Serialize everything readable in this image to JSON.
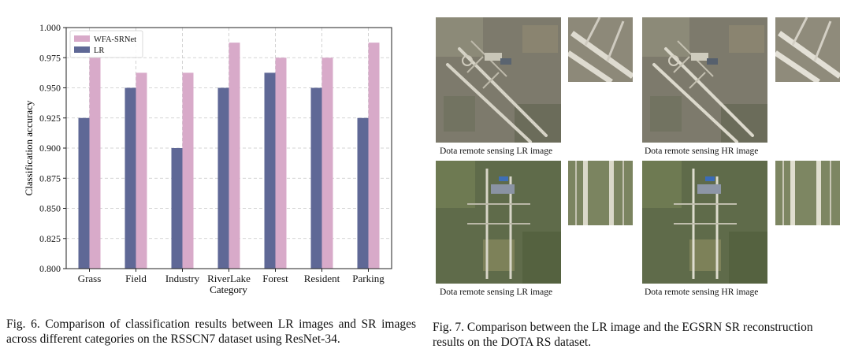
{
  "chart_data": {
    "type": "bar",
    "categories": [
      "Grass",
      "Field",
      "Industry",
      "RiverLake",
      "Forest",
      "Resident",
      "Parking"
    ],
    "series": [
      {
        "name": "LR",
        "color": "#5f6896",
        "values": [
          0.925,
          0.95,
          0.9,
          0.95,
          0.9625,
          0.95,
          0.925
        ]
      },
      {
        "name": "WFA-SRNet",
        "color": "#d8aac9",
        "values": [
          0.975,
          0.9625,
          0.9625,
          0.9875,
          0.975,
          0.975,
          0.9875
        ]
      }
    ],
    "legend_order": [
      "WFA-SRNet",
      "LR"
    ],
    "xlabel": "Category",
    "ylabel": "Classification accuracy",
    "ylim": [
      0.8,
      1.0
    ],
    "yticks": [
      "0.800",
      "0.825",
      "0.850",
      "0.875",
      "0.900",
      "0.925",
      "0.950",
      "0.975",
      "1.000"
    ],
    "grid": true,
    "legend_position": "top-left"
  },
  "fig6": {
    "caption": "Fig. 6.  Comparison of classification results between LR images and SR images across different categories on the RSSCN7 dataset using ResNet-34."
  },
  "fig7": {
    "caption": "Fig. 7.  Comparison between the LR image and the EGSRN SR reconstruction results on the DOTA RS dataset.",
    "rows": [
      {
        "lr_label": "Dota remote sensing LR image",
        "hr_label": "Dota remote sensing HR image",
        "scene": "airport-diagonal"
      },
      {
        "lr_label": "Dota remote sensing LR image",
        "hr_label": "Dota remote sensing HR image",
        "scene": "airport-vertical"
      }
    ]
  }
}
